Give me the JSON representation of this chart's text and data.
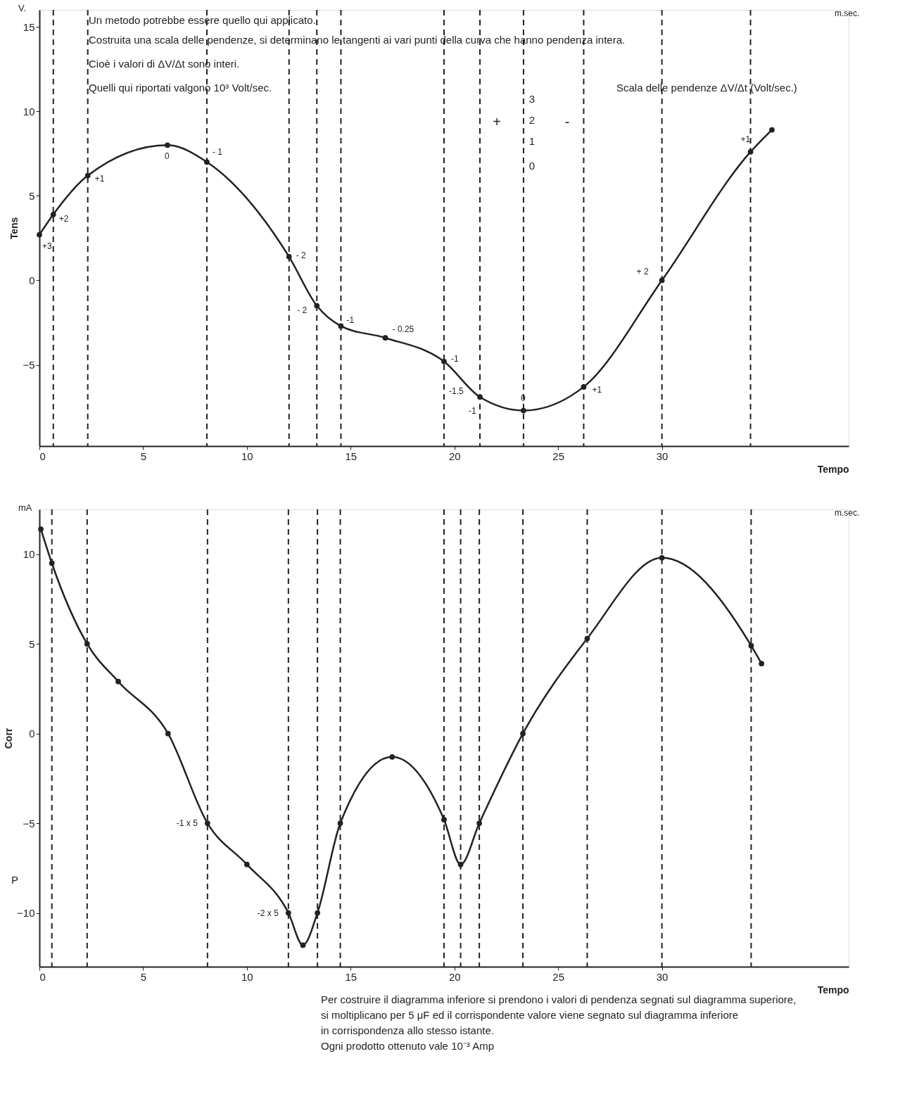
{
  "chart_data": [
    {
      "type": "line",
      "ylabel": "Tens",
      "xlabel": "Tempo",
      "xlim": [
        0,
        39
      ],
      "xticks": [
        0,
        5,
        10,
        15,
        20,
        25,
        30
      ],
      "ylim": [
        -9.8,
        16
      ],
      "yticks": [
        -5,
        0,
        5,
        10,
        15
      ],
      "grid": false,
      "marker": "circle",
      "line_style": "solid",
      "x": [
        0,
        0.67,
        2.33,
        6.17,
        8.07,
        12.03,
        13.37,
        14.53,
        16.67,
        19.5,
        21.23,
        23.33,
        26.23,
        30,
        34.27,
        35.3
      ],
      "series": [
        {
          "color": "#222222",
          "values": [
            2.7,
            3.9,
            6.2,
            8.0,
            7.0,
            1.4,
            -1.5,
            -2.7,
            -3.4,
            -4.8,
            -6.9,
            -7.7,
            -6.3,
            0,
            7.6,
            8.9
          ]
        }
      ],
      "ref_lines": [
        {
          "axis": "x",
          "value": 0.67,
          "line_style": "dashed"
        },
        {
          "axis": "x",
          "value": 2.33,
          "line_style": "dashed"
        },
        {
          "axis": "x",
          "value": 8.07,
          "line_style": "dashed"
        },
        {
          "axis": "x",
          "value": 12.03,
          "line_style": "dashed"
        },
        {
          "axis": "x",
          "value": 13.37,
          "line_style": "dashed"
        },
        {
          "axis": "x",
          "value": 14.53,
          "line_style": "dashed"
        },
        {
          "axis": "x",
          "value": 19.5,
          "line_style": "dashed"
        },
        {
          "axis": "x",
          "value": 21.23,
          "line_style": "dashed"
        },
        {
          "axis": "x",
          "value": 23.33,
          "line_style": "dashed"
        },
        {
          "axis": "x",
          "value": 26.23,
          "line_style": "dashed"
        },
        {
          "axis": "x",
          "value": 30,
          "line_style": "dashed"
        },
        {
          "axis": "x",
          "value": 34.27,
          "line_style": "dashed"
        }
      ],
      "annotations": [
        "V.",
        "m.sec.",
        "Un metodo potrebbe essere quello qui applicato.",
        "Costruita una scala delle pendenze, si determinano le tangenti ai vari punti della curva che hanno pendenza intera.",
        "Cioè i valori di ΔV/Δt sono interi.",
        "Quelli qui riportati valgono 10³ Volt/sec.",
        "Scala delle pendenze ΔV/Δt (Volt/sec.)",
        "3",
        "2",
        "1",
        "0",
        "+",
        "-",
        {
          "text": "+3",
          "x": 0,
          "y": 2.7
        },
        {
          "text": "+2",
          "x": 0.67,
          "y": 3.9
        },
        {
          "text": "+1",
          "x": 2.33,
          "y": 6.2
        },
        {
          "text": "0",
          "x": 6.17,
          "y": 8.0
        },
        {
          "text": "- 1",
          "x": 8.07,
          "y": 7.0
        },
        {
          "text": "- 2",
          "x": 12.03,
          "y": 1.4
        },
        {
          "text": "- 2",
          "x": 13.37,
          "y": -1.5
        },
        {
          "text": "-1",
          "x": 14.53,
          "y": -2.7
        },
        {
          "text": "- 0.25",
          "x": 16.67,
          "y": -3.4
        },
        {
          "text": "-1",
          "x": 19.5,
          "y": -4.8
        },
        {
          "text": "-1.5",
          "x": 21.23,
          "y": -6.9
        },
        {
          "text": "-1",
          "x": 21.23,
          "y": -6.9
        },
        {
          "text": "0",
          "x": 23.33,
          "y": -7.7
        },
        {
          "text": "+1",
          "x": 26.23,
          "y": -6.3
        },
        {
          "text": "+ 2",
          "x": 30,
          "y": 0
        },
        {
          "text": "+1",
          "x": 34.27,
          "y": 7.6
        }
      ]
    },
    {
      "type": "line",
      "ylabel": "Corr",
      "xlabel": "Tempo",
      "xlim": [
        0,
        39
      ],
      "xticks": [
        0,
        5,
        10,
        15,
        20,
        25,
        30
      ],
      "ylim": [
        -13,
        12.5
      ],
      "yticks": [
        -10,
        -5,
        0,
        5,
        10
      ],
      "grid": false,
      "marker": "circle",
      "line_style": "solid",
      "x": [
        0.07,
        0.6,
        2.3,
        3.8,
        6.2,
        8.1,
        10,
        12,
        12.7,
        13.4,
        14.5,
        17,
        19.5,
        20.3,
        21.2,
        23.3,
        26.4,
        30,
        34.3,
        34.8
      ],
      "series": [
        {
          "color": "#222222",
          "values": [
            11.4,
            9.5,
            5.0,
            2.9,
            0,
            -5,
            -7.3,
            -10,
            -11.8,
            -10,
            -5,
            -1.3,
            -4.8,
            -7.3,
            -5,
            0,
            5.3,
            9.8,
            4.9,
            3.9
          ]
        }
      ],
      "ref_lines": [
        {
          "axis": "x",
          "value": 0.6,
          "line_style": "dashed"
        },
        {
          "axis": "x",
          "value": 2.3,
          "line_style": "dashed"
        },
        {
          "axis": "x",
          "value": 8.1,
          "line_style": "dashed"
        },
        {
          "axis": "x",
          "value": 12,
          "line_style": "dashed"
        },
        {
          "axis": "x",
          "value": 13.4,
          "line_style": "dashed"
        },
        {
          "axis": "x",
          "value": 14.5,
          "line_style": "dashed"
        },
        {
          "axis": "x",
          "value": 19.5,
          "line_style": "dashed"
        },
        {
          "axis": "x",
          "value": 20.3,
          "line_style": "dashed"
        },
        {
          "axis": "x",
          "value": 21.2,
          "line_style": "dashed"
        },
        {
          "axis": "x",
          "value": 23.3,
          "line_style": "dashed"
        },
        {
          "axis": "x",
          "value": 26.4,
          "line_style": "dashed"
        },
        {
          "axis": "x",
          "value": 30,
          "line_style": "dashed"
        },
        {
          "axis": "x",
          "value": 34.3,
          "line_style": "dashed"
        }
      ],
      "annotations": [
        "mA",
        "m.sec.",
        "P",
        "Per costruire il diagramma inferiore si prendono i valori di pendenza segnati sul diagramma superiore,",
        "si moltiplicano per 5 μF ed il corrispondente valore viene segnato sul diagramma inferiore",
        "in corrispondenza allo stesso istante.",
        "Ogni prodotto ottenuto vale 10⁻³ Amp",
        {
          "text": "-1 x 5",
          "x": 8.1,
          "y": -5
        },
        {
          "text": "-2 x 5",
          "x": 12,
          "y": -10
        }
      ]
    }
  ]
}
